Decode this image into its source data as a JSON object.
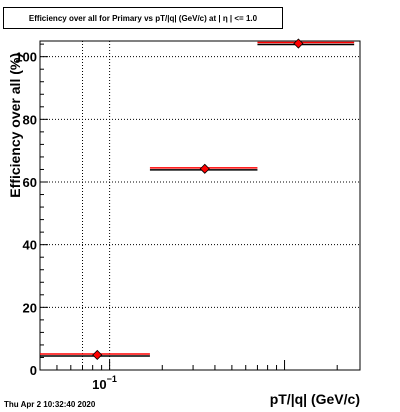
{
  "title": "Efficiency over all for Primary vs pT/|q| (GeV/c) at | η | <= 1.0",
  "timestamp": "Thu Apr  2 10:32:40 2020",
  "colors": {
    "marker": "#ff0000",
    "error_bar": "#ff0000",
    "line": "#000000",
    "background": "#ffffff"
  },
  "chart_data": {
    "type": "scatter",
    "xlabel": "pT/|q| (GeV/c)",
    "ylabel": "Efficiency over all (%)",
    "x_scale": "log",
    "x_tick_label": "10",
    "x_tick_exponent": "−1",
    "y_ticks": [
      "0",
      "20",
      "40",
      "60",
      "80",
      "100"
    ],
    "ylim": [
      0,
      105
    ],
    "grid": true,
    "points": [
      {
        "x": 0.085,
        "x_low": 0.04,
        "x_high": 0.17,
        "y": 4.8,
        "y_err": 0.3
      },
      {
        "x": 0.35,
        "x_low": 0.17,
        "x_high": 0.7,
        "y": 64.2,
        "y_err": 0.6
      },
      {
        "x": 1.2,
        "x_low": 0.7,
        "x_high": 2.5,
        "y": 104.2,
        "y_err": 0.5
      }
    ]
  }
}
